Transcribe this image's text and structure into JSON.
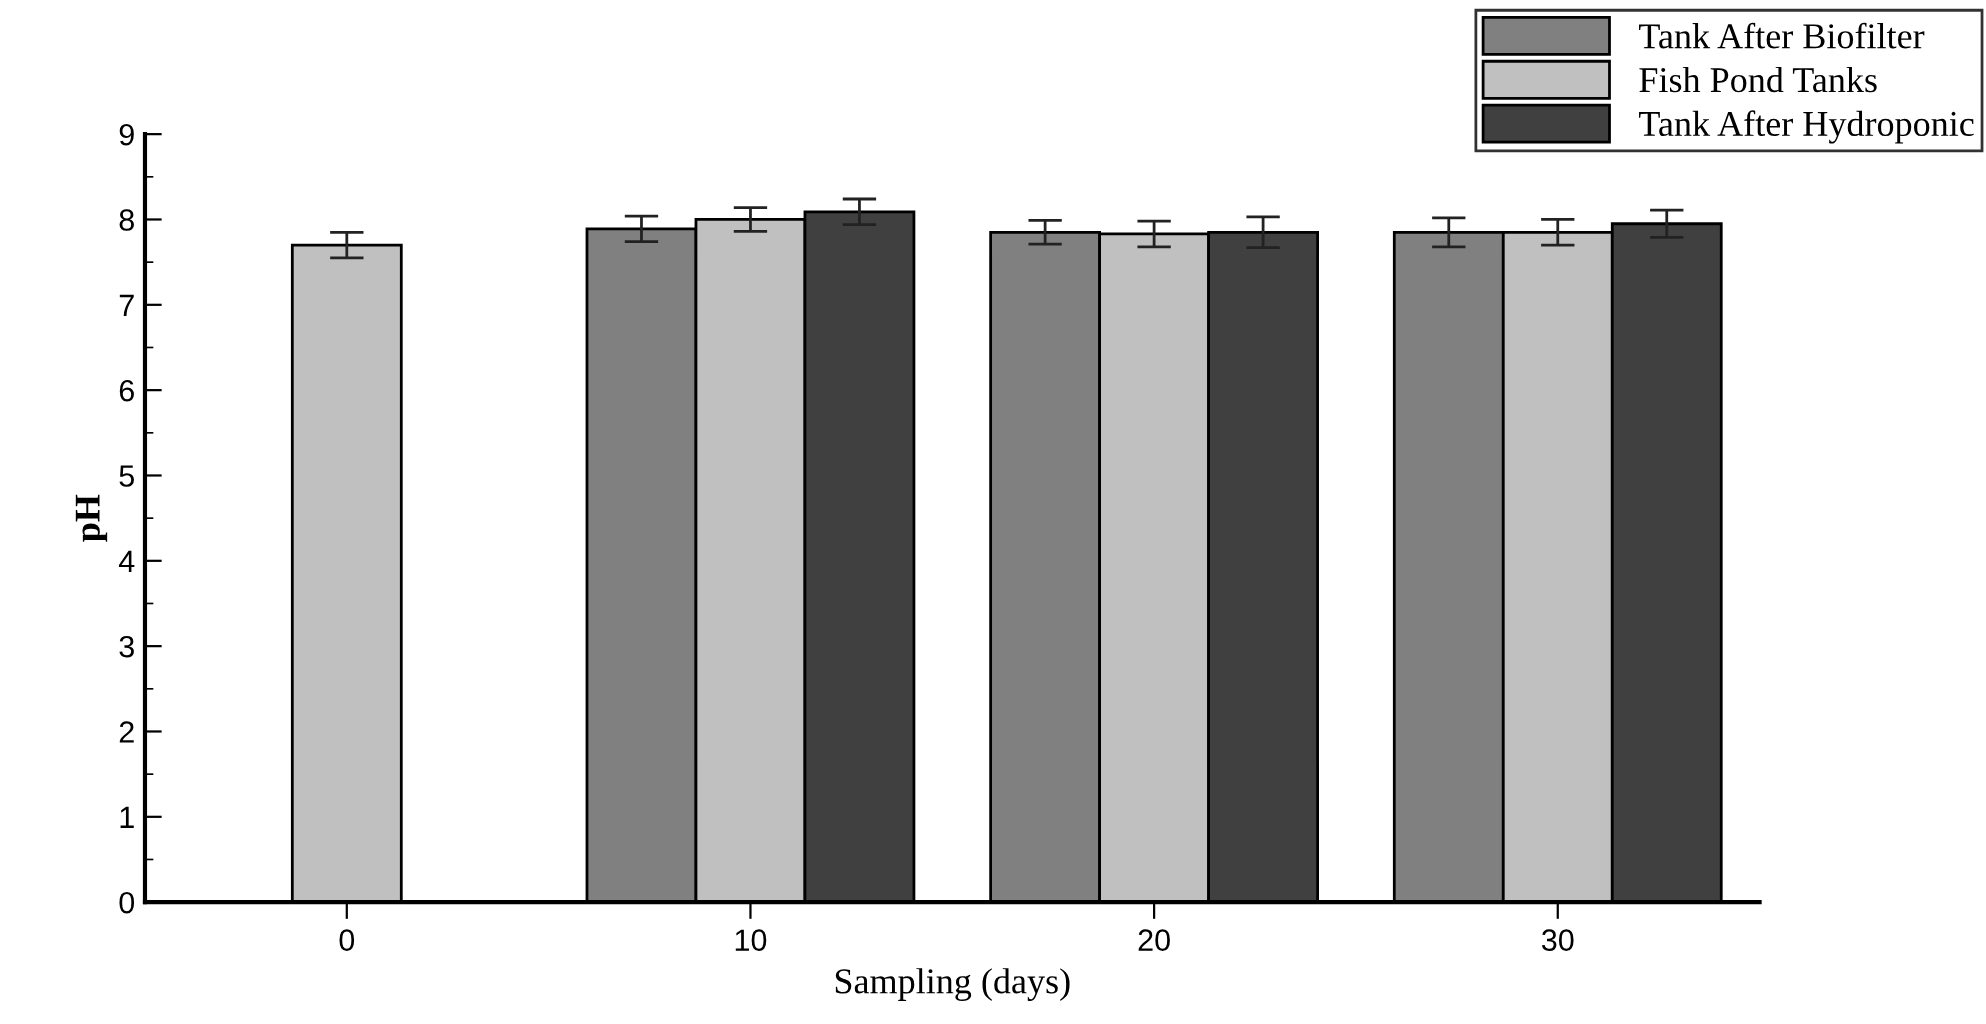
{
  "chart_data": {
    "type": "bar",
    "xlabel": "Sampling (days)",
    "ylabel": "pH",
    "categories": [
      "0",
      "10",
      "20",
      "30"
    ],
    "series": [
      {
        "name": "Tank After Biofilter",
        "color": "#808080",
        "values": [
          null,
          7.89,
          7.85,
          7.85
        ],
        "errors": [
          null,
          0.15,
          0.14,
          0.17
        ]
      },
      {
        "name": "Fish Pond Tanks",
        "color": "#c0c0c0",
        "values": [
          7.7,
          8.0,
          7.83,
          7.85
        ],
        "errors": [
          0.15,
          0.14,
          0.15,
          0.15
        ]
      },
      {
        "name": "Tank After Hydroponic",
        "color": "#404040",
        "values": [
          null,
          8.09,
          7.85,
          7.95
        ],
        "errors": [
          null,
          0.15,
          0.18,
          0.16
        ]
      }
    ],
    "ylim": [
      0,
      9
    ],
    "yticks": [
      0,
      1,
      2,
      3,
      4,
      5,
      6,
      7,
      8,
      9
    ],
    "grid": false,
    "legend": "top right"
  }
}
